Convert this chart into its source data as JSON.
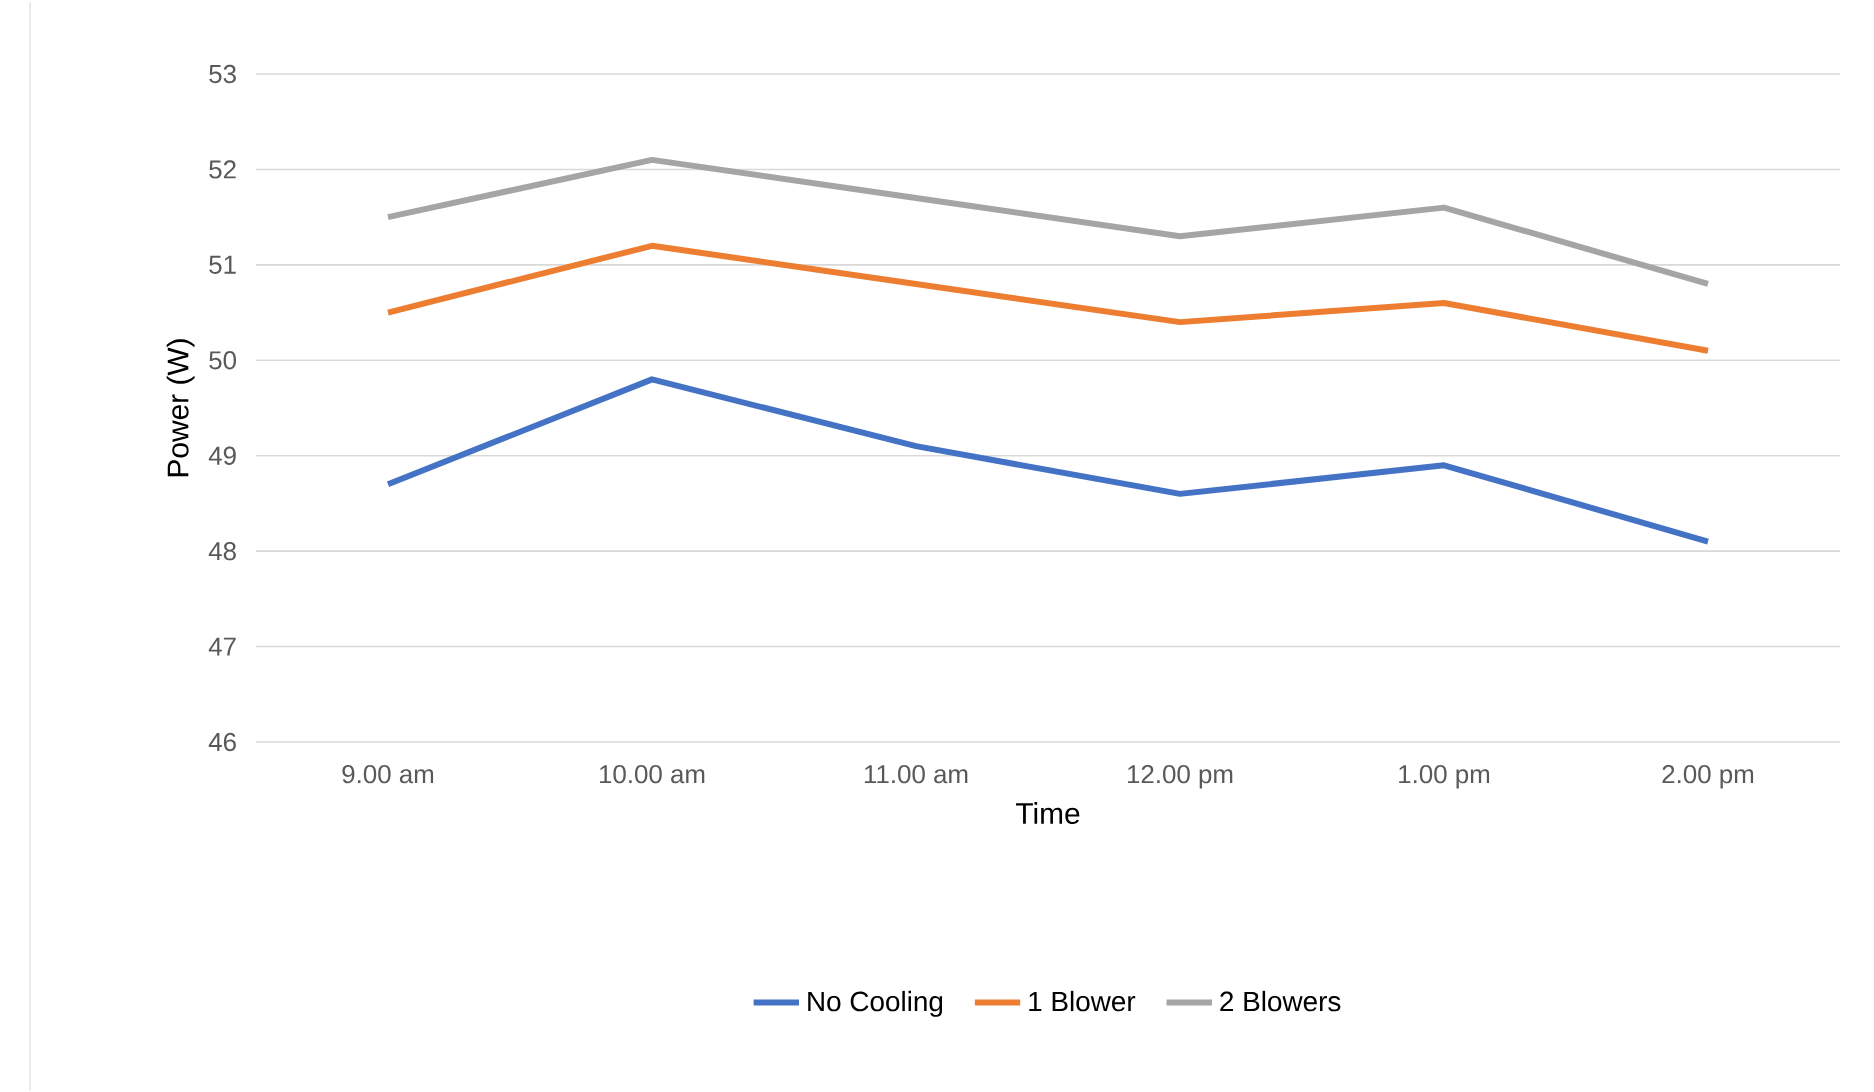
{
  "chart_data": {
    "type": "line",
    "xlabel": "Time",
    "ylabel": "Power (W)",
    "categories": [
      "9.00 am",
      "10.00 am",
      "11.00 am",
      "12.00 pm",
      "1.00 pm",
      "2.00 pm"
    ],
    "series": [
      {
        "name": "No Cooling",
        "color": "#4472c4",
        "values": [
          48.7,
          49.8,
          49.1,
          48.6,
          48.9,
          48.1
        ]
      },
      {
        "name": "1 Blower",
        "color": "#ed7d31",
        "values": [
          50.5,
          51.2,
          50.8,
          50.4,
          50.6,
          50.1
        ]
      },
      {
        "name": "2 Blowers",
        "color": "#a5a5a5",
        "values": [
          51.5,
          52.1,
          51.7,
          51.3,
          51.6,
          50.8
        ]
      }
    ],
    "ylim": [
      46,
      53
    ],
    "yticks": [
      46,
      47,
      48,
      49,
      50,
      51,
      52,
      53
    ],
    "grid": "y",
    "legend": "bottom",
    "marker": "none",
    "line_style": "solid"
  }
}
